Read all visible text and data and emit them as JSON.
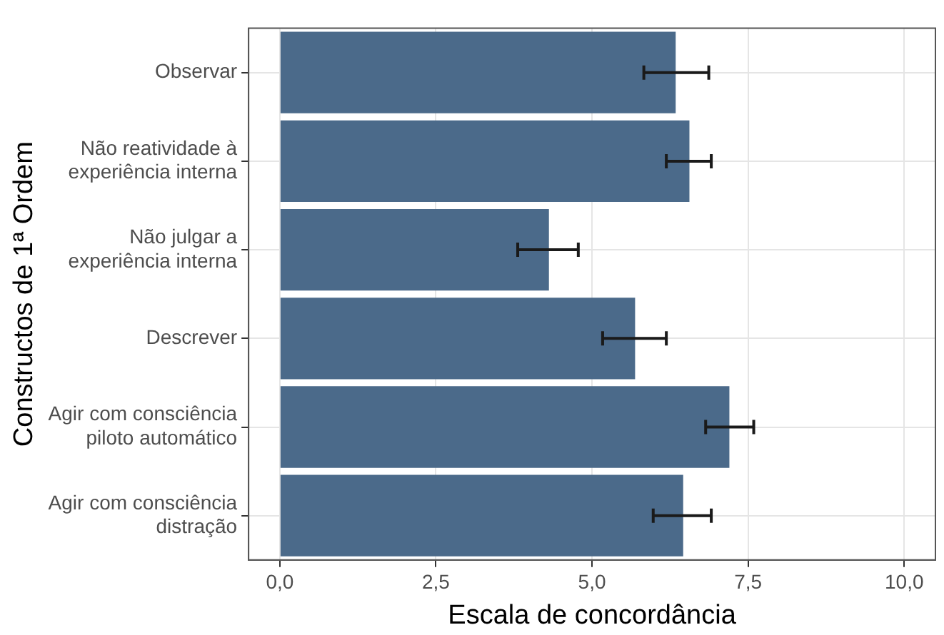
{
  "chart_data": {
    "type": "bar",
    "orientation": "horizontal",
    "categories": [
      "Observar",
      "Não reatividade à\nexperiência interna",
      "Não julgar a\nexperiência interna",
      "Descrever",
      "Agir com consciência\npiloto automático",
      "Agir com consciência\ndistração"
    ],
    "values": [
      6.34,
      6.56,
      4.31,
      5.69,
      7.2,
      6.46
    ],
    "errors": [
      [
        5.83,
        6.87
      ],
      [
        6.19,
        6.91
      ],
      [
        3.81,
        4.78
      ],
      [
        5.17,
        6.19
      ],
      [
        6.82,
        7.59
      ],
      [
        5.98,
        6.91
      ]
    ],
    "color": "#4b6a8a",
    "xlim": [
      -0.5,
      10.5
    ],
    "xticks": [
      {
        "value": 0,
        "label": "0,0"
      },
      {
        "value": 2.5,
        "label": "2,5"
      },
      {
        "value": 5,
        "label": "5,0"
      },
      {
        "value": 7.5,
        "label": "7,5"
      },
      {
        "value": 10,
        "label": "10,0"
      }
    ],
    "xlabel": "Escala de concordância",
    "ylabel": "Constructos de 1ª Ordem",
    "grid": true,
    "legend": false
  }
}
